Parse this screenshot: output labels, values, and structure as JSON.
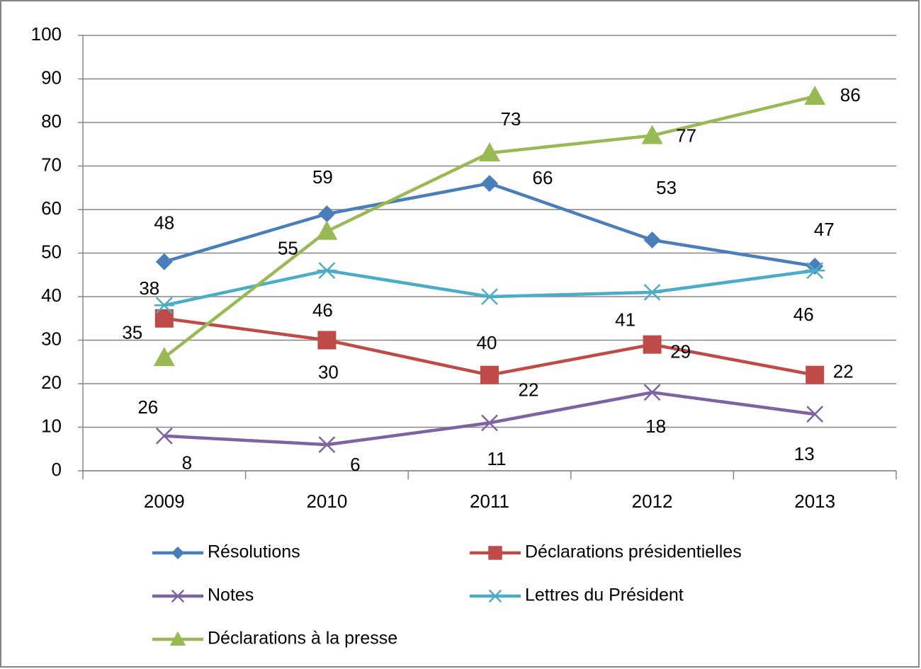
{
  "chart_data": {
    "type": "line",
    "categories": [
      "2009",
      "2010",
      "2011",
      "2012",
      "2013"
    ],
    "series": [
      {
        "name": "Résolutions",
        "color": "#4a7ebb",
        "marker": "diamond",
        "values": [
          48,
          59,
          66,
          53,
          47
        ]
      },
      {
        "name": "Déclarations présidentielles",
        "color": "#be4b48",
        "marker": "square",
        "values": [
          35,
          30,
          22,
          29,
          22
        ]
      },
      {
        "name": "Notes",
        "color": "#7e62a1",
        "marker": "x",
        "values": [
          8,
          6,
          11,
          18,
          13
        ]
      },
      {
        "name": "Lettres du Président",
        "color": "#4bacc6",
        "marker": "asterisk",
        "values": [
          38,
          46,
          40,
          41,
          46
        ]
      },
      {
        "name": "Déclarations à la presse",
        "color": "#98b954",
        "marker": "triangle",
        "values": [
          26,
          55,
          73,
          77,
          86
        ]
      }
    ],
    "ylim": [
      0,
      100
    ],
    "yticks": [
      0,
      10,
      20,
      30,
      40,
      50,
      60,
      70,
      80,
      90,
      100
    ],
    "grid": true
  }
}
